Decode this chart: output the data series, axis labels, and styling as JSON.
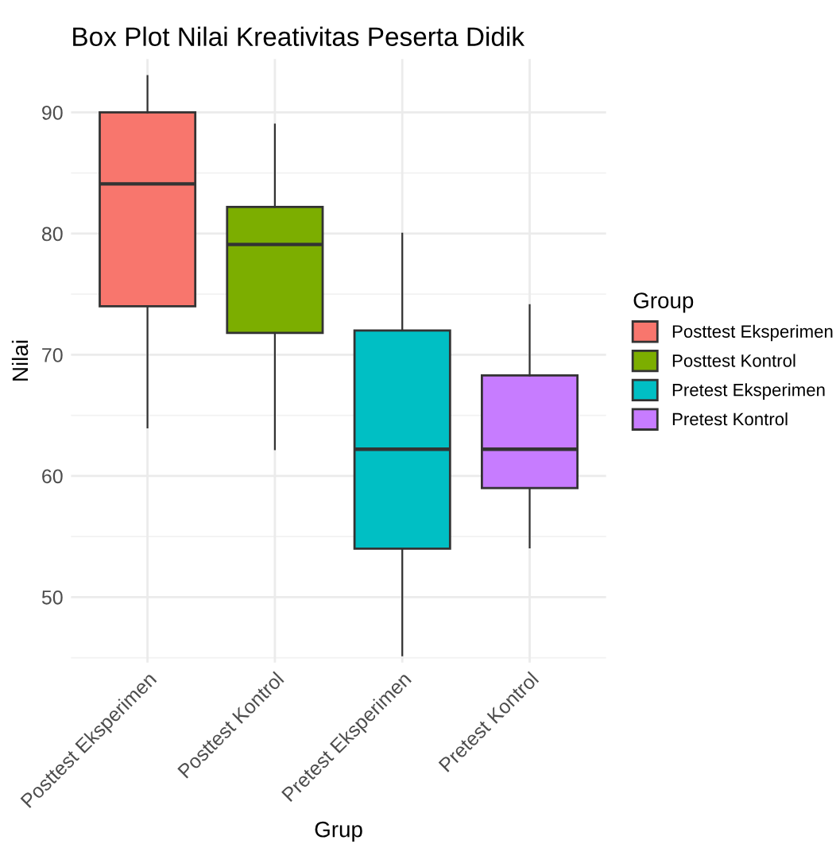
{
  "chart_data": {
    "type": "box",
    "title": "Box Plot Nilai Kreativitas Peserta Didik",
    "xlabel": "Grup",
    "ylabel": "Nilai",
    "legend_title": "Group",
    "categories": [
      "Posttest Eksperimen",
      "Posttest Kontrol",
      "Pretest Eksperimen",
      "Pretest Kontrol"
    ],
    "series": [
      {
        "name": "Posttest Eksperimen",
        "color": "#f8766d",
        "boxes": [
          {
            "low": 64,
            "q1": 74,
            "median": 84.1,
            "q3": 90,
            "high": 93
          },
          null,
          null,
          null
        ]
      },
      {
        "name": "Posttest Kontrol",
        "color": "#7cae00",
        "boxes": [
          null,
          {
            "low": 62.2,
            "q1": 71.8,
            "median": 79.1,
            "q3": 82.2,
            "high": 89
          },
          null,
          null
        ]
      },
      {
        "name": "Pretest Eksperimen",
        "color": "#00bfc4",
        "boxes": [
          null,
          null,
          {
            "low": 45.2,
            "q1": 54,
            "median": 62.2,
            "q3": 72,
            "high": 80
          },
          null
        ]
      },
      {
        "name": "Pretest Kontrol",
        "color": "#c77cff",
        "boxes": [
          null,
          null,
          null,
          {
            "low": 54.1,
            "q1": 59,
            "median": 62.2,
            "q3": 68.3,
            "high": 74.1
          }
        ]
      }
    ],
    "ylim": [
      44.6,
      94.4
    ],
    "yticks": [
      50,
      60,
      70,
      80,
      90
    ],
    "grid": true,
    "legend": "right"
  }
}
